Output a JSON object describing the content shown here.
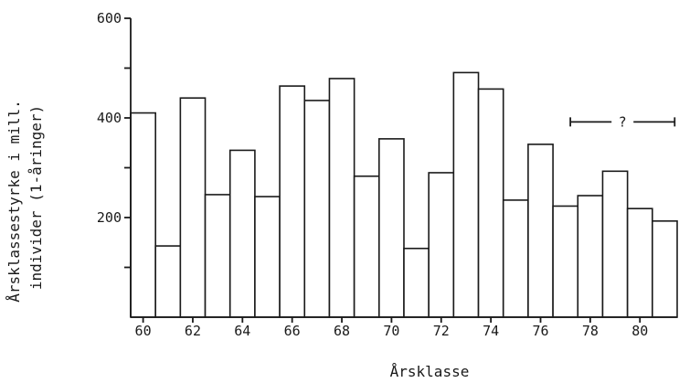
{
  "chart_data": {
    "type": "bar",
    "x": [
      1960,
      1961,
      1962,
      1963,
      1964,
      1965,
      1966,
      1967,
      1968,
      1969,
      1970,
      1971,
      1972,
      1973,
      1974,
      1975,
      1976,
      1977,
      1978,
      1979,
      1980,
      1981
    ],
    "values": [
      410,
      143,
      440,
      246,
      335,
      242,
      464,
      435,
      479,
      283,
      358,
      138,
      290,
      491,
      458,
      235,
      347,
      223,
      244,
      293,
      218,
      193
    ],
    "xticks": [
      "60",
      "62",
      "64",
      "66",
      "68",
      "70",
      "72",
      "74",
      "76",
      "78",
      "80"
    ],
    "yticks": [
      "200",
      "400",
      "600"
    ],
    "ylim": [
      0,
      600
    ],
    "xlabel": "Årsklasse",
    "ylabel_line1": "Årsklassestyrke i mill.",
    "ylabel_line2": "individer (1-åringer)",
    "annotation": {
      "text": "?",
      "x_from": 1977.7,
      "x_to": 1981.9,
      "y": 392
    },
    "grid": false
  }
}
